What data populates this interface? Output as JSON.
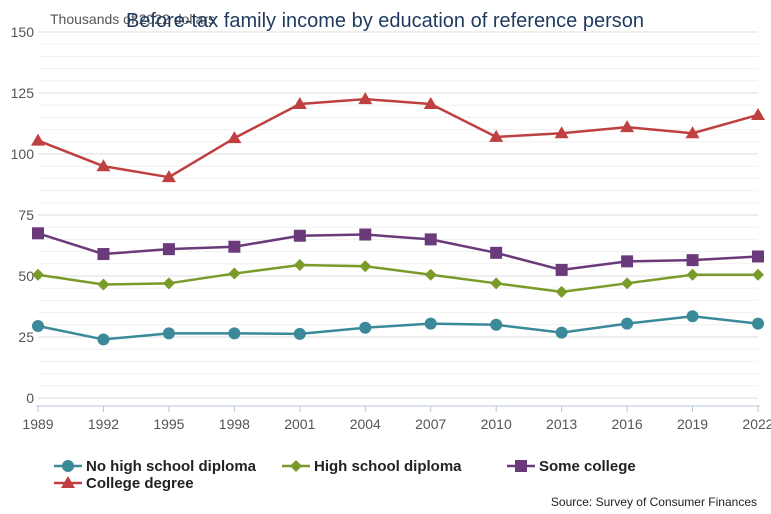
{
  "chart_data": {
    "type": "line",
    "title": "Before-tax family income by education of reference person",
    "ylabel": "Thousands of 2022 dollars",
    "xlabel": "",
    "x": [
      "1989",
      "1992",
      "1995",
      "1998",
      "2001",
      "2004",
      "2007",
      "2010",
      "2013",
      "2016",
      "2019",
      "2022"
    ],
    "ylim": [
      0,
      150
    ],
    "yticks": [
      0,
      25,
      50,
      75,
      100,
      125,
      150
    ],
    "grid": true,
    "legend_position": "bottom",
    "series": [
      {
        "name": "No high school diploma",
        "color": "#3a8a99",
        "marker": "circle",
        "values": [
          29.5,
          24,
          26.5,
          26.5,
          26.3,
          28.8,
          30.5,
          30,
          26.8,
          30.5,
          33.5,
          30.5
        ]
      },
      {
        "name": "High school diploma",
        "color": "#7a9a2a",
        "marker": "diamond",
        "values": [
          50.5,
          46.5,
          47,
          51,
          54.5,
          54,
          50.5,
          47,
          43.5,
          47,
          50.5,
          50.5
        ]
      },
      {
        "name": "Some college",
        "color": "#6b3a7a",
        "marker": "square",
        "values": [
          67.5,
          59,
          61,
          62,
          66.5,
          67,
          65,
          59.5,
          52.5,
          56,
          56.5,
          58
        ]
      },
      {
        "name": "College degree",
        "color": "#bf4040",
        "marker": "triangle",
        "values": [
          105.5,
          95,
          90.5,
          106.5,
          120.5,
          122.5,
          120.5,
          107,
          108.5,
          111,
          108.5,
          116
        ]
      }
    ],
    "source": "Source: Survey of Consumer Finances"
  }
}
